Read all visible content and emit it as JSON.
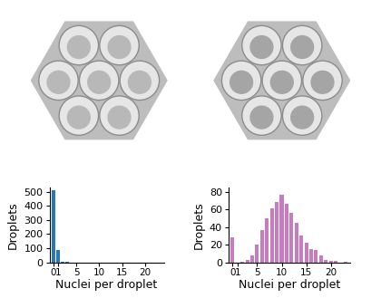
{
  "chart_data": [
    {
      "type": "bar",
      "x": [
        0,
        1,
        2,
        3,
        4,
        5,
        6,
        7,
        8,
        9,
        10,
        11,
        12,
        13,
        14,
        15,
        16,
        17,
        18,
        19,
        20,
        21,
        22,
        23
      ],
      "values": [
        510,
        85,
        5,
        1,
        0,
        0,
        0,
        0,
        0,
        0,
        0,
        0,
        0,
        0,
        0,
        0,
        0,
        0,
        0,
        0,
        0,
        0,
        0,
        0
      ],
      "color": "#2878b5",
      "xlabel": "Nuclei per droplet",
      "ylabel": "Droplets",
      "xlim": [
        -0.8,
        24
      ],
      "ylim": [
        0,
        530
      ],
      "xticks": [
        0,
        1,
        5,
        10,
        15,
        20
      ],
      "yticks": [
        0,
        100,
        200,
        300,
        400,
        500
      ]
    },
    {
      "type": "bar",
      "x": [
        0,
        1,
        2,
        3,
        4,
        5,
        6,
        7,
        8,
        9,
        10,
        11,
        12,
        13,
        14,
        15,
        16,
        17,
        18,
        19,
        20,
        21,
        22,
        23
      ],
      "values": [
        28,
        0,
        1,
        3,
        8,
        20,
        37,
        50,
        62,
        69,
        77,
        67,
        56,
        45,
        30,
        22,
        15,
        14,
        8,
        3,
        2,
        2,
        0,
        1
      ],
      "color": "#c77cc0",
      "xlabel": "Nuclei per droplet",
      "ylabel": "Droplets",
      "xlim": [
        -0.8,
        24
      ],
      "ylim": [
        0,
        85
      ],
      "xticks": [
        0,
        1,
        5,
        10,
        15,
        20
      ],
      "yticks": [
        0,
        20,
        40,
        60,
        80
      ]
    }
  ]
}
